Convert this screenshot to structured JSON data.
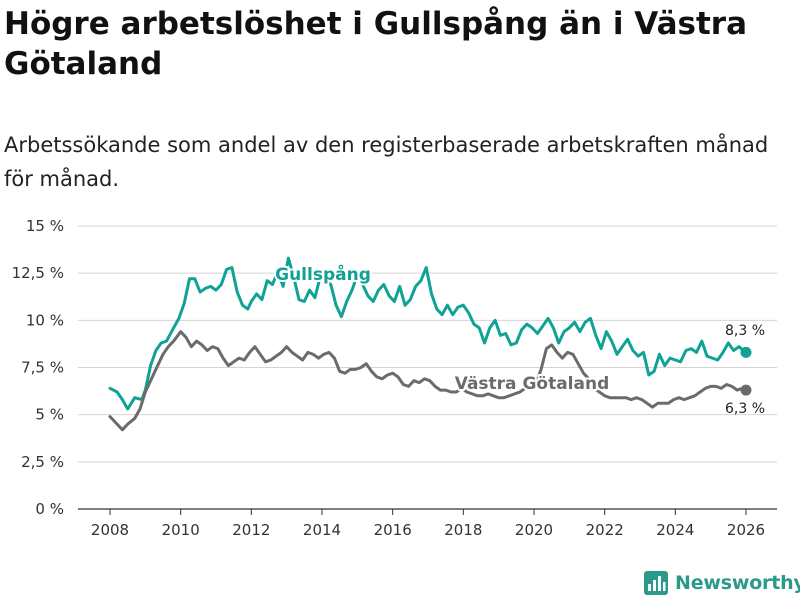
{
  "title": "Högre arbetslöshet i Gullspång än i Västra Götaland",
  "subtitle": "Arbetssökande som andel av den registerbaserade arbetskraften månad för månad.",
  "brand": "Newsworthy",
  "colors": {
    "gullspang": "#0fa295",
    "vg": "#6b6b6e",
    "grid": "#d4d4d4",
    "axis": "#333333",
    "brand": "#2b9a8a"
  },
  "chart_data": {
    "type": "line",
    "title": "Högre arbetslöshet i Gullspång än i Västra Götaland",
    "xlabel": "",
    "ylabel": "",
    "xlim": [
      2007.5,
      2026.9
    ],
    "ylim": [
      0,
      15
    ],
    "x_ticks": [
      2008,
      2010,
      2012,
      2014,
      2016,
      2018,
      2020,
      2022,
      2024,
      2026
    ],
    "x_tick_labels": [
      "2008",
      "2010",
      "2012",
      "2014",
      "2016",
      "2018",
      "2020",
      "2022",
      "2024",
      "2026"
    ],
    "y_ticks": [
      0,
      2.5,
      5,
      7.5,
      10,
      12.5,
      15
    ],
    "y_tick_labels": [
      "0 %",
      "2,5 %",
      "5 %",
      "7,5 %",
      "10 %",
      "12,5 %",
      "15 %"
    ],
    "grid": true,
    "series": [
      {
        "name": "Gullspång",
        "end_label": "8,3 %",
        "points": [
          [
            2008.0,
            6.4
          ],
          [
            2008.2,
            6.2
          ],
          [
            2008.35,
            5.8
          ],
          [
            2008.5,
            5.3
          ],
          [
            2008.7,
            5.9
          ],
          [
            2008.9,
            5.8
          ],
          [
            2009.0,
            6.3
          ],
          [
            2009.15,
            7.6
          ],
          [
            2009.3,
            8.4
          ],
          [
            2009.45,
            8.8
          ],
          [
            2009.6,
            8.9
          ],
          [
            2009.8,
            9.6
          ],
          [
            2009.95,
            10.1
          ],
          [
            2010.1,
            10.9
          ],
          [
            2010.25,
            12.2
          ],
          [
            2010.4,
            12.2
          ],
          [
            2010.55,
            11.5
          ],
          [
            2010.7,
            11.7
          ],
          [
            2010.85,
            11.8
          ],
          [
            2011.0,
            11.6
          ],
          [
            2011.15,
            11.9
          ],
          [
            2011.3,
            12.7
          ],
          [
            2011.45,
            12.8
          ],
          [
            2011.6,
            11.5
          ],
          [
            2011.75,
            10.8
          ],
          [
            2011.9,
            10.6
          ],
          [
            2012.0,
            11.0
          ],
          [
            2012.15,
            11.4
          ],
          [
            2012.3,
            11.1
          ],
          [
            2012.45,
            12.1
          ],
          [
            2012.6,
            11.9
          ],
          [
            2012.75,
            12.6
          ],
          [
            2012.9,
            11.8
          ],
          [
            2013.05,
            13.3
          ],
          [
            2013.2,
            12.3
          ],
          [
            2013.35,
            11.1
          ],
          [
            2013.5,
            11.0
          ],
          [
            2013.65,
            11.6
          ],
          [
            2013.8,
            11.2
          ],
          [
            2013.95,
            12.3
          ],
          [
            2014.1,
            12.1
          ],
          [
            2014.25,
            11.9
          ],
          [
            2014.4,
            10.8
          ],
          [
            2014.55,
            10.2
          ],
          [
            2014.7,
            11.0
          ],
          [
            2014.85,
            11.6
          ],
          [
            2015.0,
            12.4
          ],
          [
            2015.15,
            11.9
          ],
          [
            2015.3,
            11.3
          ],
          [
            2015.45,
            11.0
          ],
          [
            2015.6,
            11.6
          ],
          [
            2015.75,
            11.9
          ],
          [
            2015.9,
            11.3
          ],
          [
            2016.05,
            11.0
          ],
          [
            2016.2,
            11.8
          ],
          [
            2016.35,
            10.8
          ],
          [
            2016.5,
            11.1
          ],
          [
            2016.65,
            11.8
          ],
          [
            2016.8,
            12.1
          ],
          [
            2016.95,
            12.8
          ],
          [
            2017.1,
            11.4
          ],
          [
            2017.25,
            10.6
          ],
          [
            2017.4,
            10.3
          ],
          [
            2017.55,
            10.8
          ],
          [
            2017.7,
            10.3
          ],
          [
            2017.85,
            10.7
          ],
          [
            2018.0,
            10.8
          ],
          [
            2018.15,
            10.4
          ],
          [
            2018.3,
            9.8
          ],
          [
            2018.45,
            9.6
          ],
          [
            2018.6,
            8.8
          ],
          [
            2018.75,
            9.6
          ],
          [
            2018.9,
            10.0
          ],
          [
            2019.05,
            9.2
          ],
          [
            2019.2,
            9.3
          ],
          [
            2019.35,
            8.7
          ],
          [
            2019.5,
            8.8
          ],
          [
            2019.65,
            9.5
          ],
          [
            2019.8,
            9.8
          ],
          [
            2019.95,
            9.6
          ],
          [
            2020.1,
            9.3
          ],
          [
            2020.25,
            9.7
          ],
          [
            2020.4,
            10.1
          ],
          [
            2020.55,
            9.6
          ],
          [
            2020.7,
            8.8
          ],
          [
            2020.85,
            9.4
          ],
          [
            2021.0,
            9.6
          ],
          [
            2021.15,
            9.9
          ],
          [
            2021.3,
            9.4
          ],
          [
            2021.45,
            9.9
          ],
          [
            2021.6,
            10.1
          ],
          [
            2021.75,
            9.2
          ],
          [
            2021.9,
            8.5
          ],
          [
            2022.05,
            9.4
          ],
          [
            2022.2,
            8.9
          ],
          [
            2022.35,
            8.2
          ],
          [
            2022.5,
            8.6
          ],
          [
            2022.65,
            9.0
          ],
          [
            2022.8,
            8.4
          ],
          [
            2022.95,
            8.1
          ],
          [
            2023.1,
            8.3
          ],
          [
            2023.25,
            7.1
          ],
          [
            2023.4,
            7.3
          ],
          [
            2023.55,
            8.2
          ],
          [
            2023.7,
            7.6
          ],
          [
            2023.85,
            8.0
          ],
          [
            2024.0,
            7.9
          ],
          [
            2024.15,
            7.8
          ],
          [
            2024.3,
            8.4
          ],
          [
            2024.45,
            8.5
          ],
          [
            2024.6,
            8.3
          ],
          [
            2024.75,
            8.9
          ],
          [
            2024.9,
            8.1
          ],
          [
            2025.05,
            8.0
          ],
          [
            2025.2,
            7.9
          ],
          [
            2025.35,
            8.3
          ],
          [
            2025.5,
            8.8
          ],
          [
            2025.65,
            8.4
          ],
          [
            2025.8,
            8.6
          ],
          [
            2026.0,
            8.3
          ]
        ]
      },
      {
        "name": "Västra Götaland",
        "end_label": "6,3 %",
        "points": [
          [
            2008.0,
            4.9
          ],
          [
            2008.2,
            4.5
          ],
          [
            2008.35,
            4.2
          ],
          [
            2008.5,
            4.5
          ],
          [
            2008.7,
            4.8
          ],
          [
            2008.85,
            5.3
          ],
          [
            2009.0,
            6.2
          ],
          [
            2009.15,
            6.8
          ],
          [
            2009.3,
            7.4
          ],
          [
            2009.5,
            8.2
          ],
          [
            2009.65,
            8.6
          ],
          [
            2009.8,
            8.9
          ],
          [
            2010.0,
            9.4
          ],
          [
            2010.15,
            9.1
          ],
          [
            2010.3,
            8.6
          ],
          [
            2010.45,
            8.9
          ],
          [
            2010.6,
            8.7
          ],
          [
            2010.75,
            8.4
          ],
          [
            2010.9,
            8.6
          ],
          [
            2011.05,
            8.5
          ],
          [
            2011.2,
            8.0
          ],
          [
            2011.35,
            7.6
          ],
          [
            2011.5,
            7.8
          ],
          [
            2011.65,
            8.0
          ],
          [
            2011.8,
            7.9
          ],
          [
            2011.95,
            8.3
          ],
          [
            2012.1,
            8.6
          ],
          [
            2012.25,
            8.2
          ],
          [
            2012.4,
            7.8
          ],
          [
            2012.55,
            7.9
          ],
          [
            2012.7,
            8.1
          ],
          [
            2012.85,
            8.3
          ],
          [
            2013.0,
            8.6
          ],
          [
            2013.15,
            8.3
          ],
          [
            2013.3,
            8.1
          ],
          [
            2013.45,
            7.9
          ],
          [
            2013.6,
            8.3
          ],
          [
            2013.75,
            8.2
          ],
          [
            2013.9,
            8.0
          ],
          [
            2014.05,
            8.2
          ],
          [
            2014.2,
            8.3
          ],
          [
            2014.35,
            8.0
          ],
          [
            2014.5,
            7.3
          ],
          [
            2014.65,
            7.2
          ],
          [
            2014.8,
            7.4
          ],
          [
            2014.95,
            7.4
          ],
          [
            2015.1,
            7.5
          ],
          [
            2015.25,
            7.7
          ],
          [
            2015.4,
            7.3
          ],
          [
            2015.55,
            7.0
          ],
          [
            2015.7,
            6.9
          ],
          [
            2015.85,
            7.1
          ],
          [
            2016.0,
            7.2
          ],
          [
            2016.15,
            7.0
          ],
          [
            2016.3,
            6.6
          ],
          [
            2016.45,
            6.5
          ],
          [
            2016.6,
            6.8
          ],
          [
            2016.75,
            6.7
          ],
          [
            2016.9,
            6.9
          ],
          [
            2017.05,
            6.8
          ],
          [
            2017.2,
            6.5
          ],
          [
            2017.35,
            6.3
          ],
          [
            2017.5,
            6.3
          ],
          [
            2017.65,
            6.2
          ],
          [
            2017.8,
            6.2
          ],
          [
            2017.95,
            6.4
          ],
          [
            2018.1,
            6.2
          ],
          [
            2018.25,
            6.1
          ],
          [
            2018.4,
            6.0
          ],
          [
            2018.55,
            6.0
          ],
          [
            2018.7,
            6.1
          ],
          [
            2018.85,
            6.0
          ],
          [
            2019.0,
            5.9
          ],
          [
            2019.15,
            5.9
          ],
          [
            2019.3,
            6.0
          ],
          [
            2019.45,
            6.1
          ],
          [
            2019.6,
            6.2
          ],
          [
            2019.75,
            6.4
          ],
          [
            2019.9,
            6.6
          ],
          [
            2020.05,
            6.6
          ],
          [
            2020.2,
            7.4
          ],
          [
            2020.35,
            8.5
          ],
          [
            2020.5,
            8.7
          ],
          [
            2020.65,
            8.3
          ],
          [
            2020.8,
            8.0
          ],
          [
            2020.95,
            8.3
          ],
          [
            2021.1,
            8.2
          ],
          [
            2021.25,
            7.7
          ],
          [
            2021.4,
            7.2
          ],
          [
            2021.55,
            6.9
          ],
          [
            2021.7,
            6.4
          ],
          [
            2021.85,
            6.2
          ],
          [
            2022.0,
            6.0
          ],
          [
            2022.15,
            5.9
          ],
          [
            2022.3,
            5.9
          ],
          [
            2022.45,
            5.9
          ],
          [
            2022.6,
            5.9
          ],
          [
            2022.75,
            5.8
          ],
          [
            2022.9,
            5.9
          ],
          [
            2023.05,
            5.8
          ],
          [
            2023.2,
            5.6
          ],
          [
            2023.35,
            5.4
          ],
          [
            2023.5,
            5.6
          ],
          [
            2023.65,
            5.6
          ],
          [
            2023.8,
            5.6
          ],
          [
            2023.95,
            5.8
          ],
          [
            2024.1,
            5.9
          ],
          [
            2024.25,
            5.8
          ],
          [
            2024.4,
            5.9
          ],
          [
            2024.55,
            6.0
          ],
          [
            2024.7,
            6.2
          ],
          [
            2024.85,
            6.4
          ],
          [
            2025.0,
            6.5
          ],
          [
            2025.15,
            6.5
          ],
          [
            2025.3,
            6.4
          ],
          [
            2025.45,
            6.6
          ],
          [
            2025.6,
            6.5
          ],
          [
            2025.75,
            6.3
          ],
          [
            2025.9,
            6.4
          ],
          [
            2026.0,
            6.3
          ]
        ]
      }
    ]
  }
}
